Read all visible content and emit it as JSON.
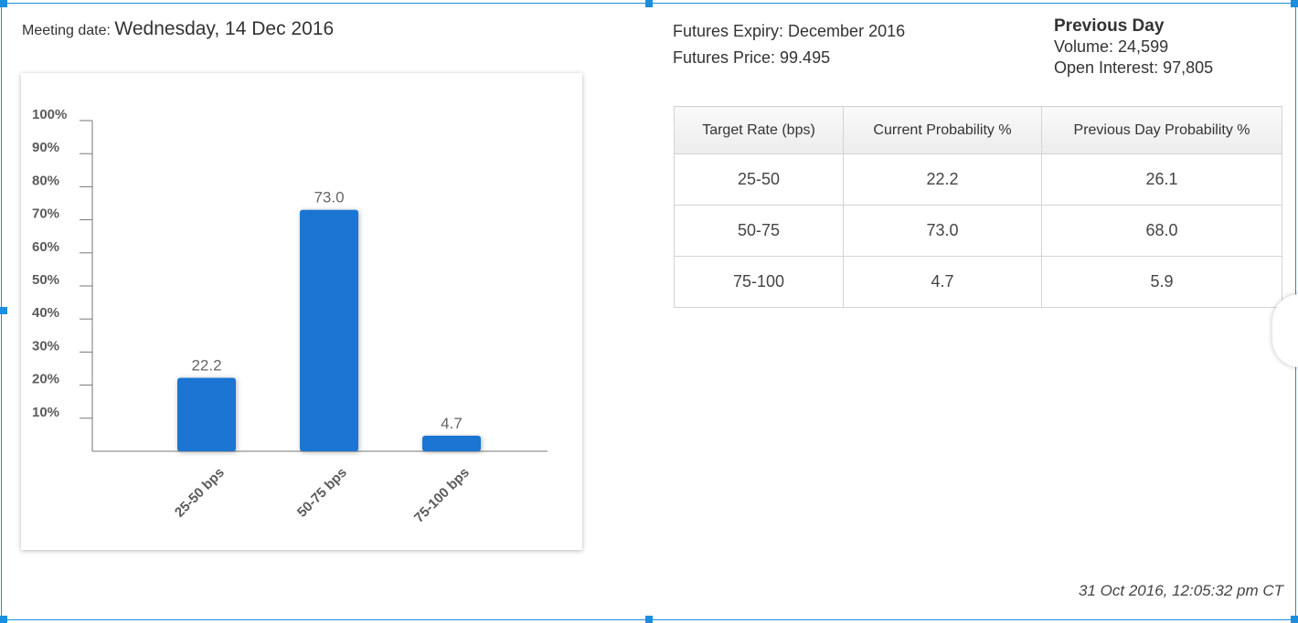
{
  "meeting": {
    "label": "Meeting date:",
    "value": "Wednesday, 14 Dec 2016"
  },
  "futures": {
    "expiry": "Futures Expiry: December 2016",
    "price": "Futures Price: 99.495"
  },
  "previous_day": {
    "heading": "Previous Day",
    "volume": "Volume: 24,599",
    "open_interest": "Open Interest: 97,805"
  },
  "table": {
    "headers": [
      "Target Rate (bps)",
      "Current Probability %",
      "Previous Day Probability %"
    ],
    "rows": [
      [
        "25-50",
        "22.2",
        "26.1"
      ],
      [
        "50-75",
        "73.0",
        "68.0"
      ],
      [
        "75-100",
        "4.7",
        "5.9"
      ]
    ]
  },
  "timestamp": "31 Oct 2016, 12:05:32 pm CT",
  "colors": {
    "bar": "#1a75d2",
    "accent": "#1a8fe0"
  },
  "chart_data": {
    "type": "bar",
    "categories": [
      "25-50 bps",
      "50-75 bps",
      "75-100 bps"
    ],
    "values": [
      22.2,
      73.0,
      4.7
    ],
    "data_labels": [
      "22.2",
      "73.0",
      "4.7"
    ],
    "yticks": [
      "10%",
      "20%",
      "30%",
      "40%",
      "50%",
      "60%",
      "70%",
      "80%",
      "90%",
      "100%"
    ],
    "ylim": [
      0,
      100
    ],
    "grid": false,
    "legend": "none"
  }
}
